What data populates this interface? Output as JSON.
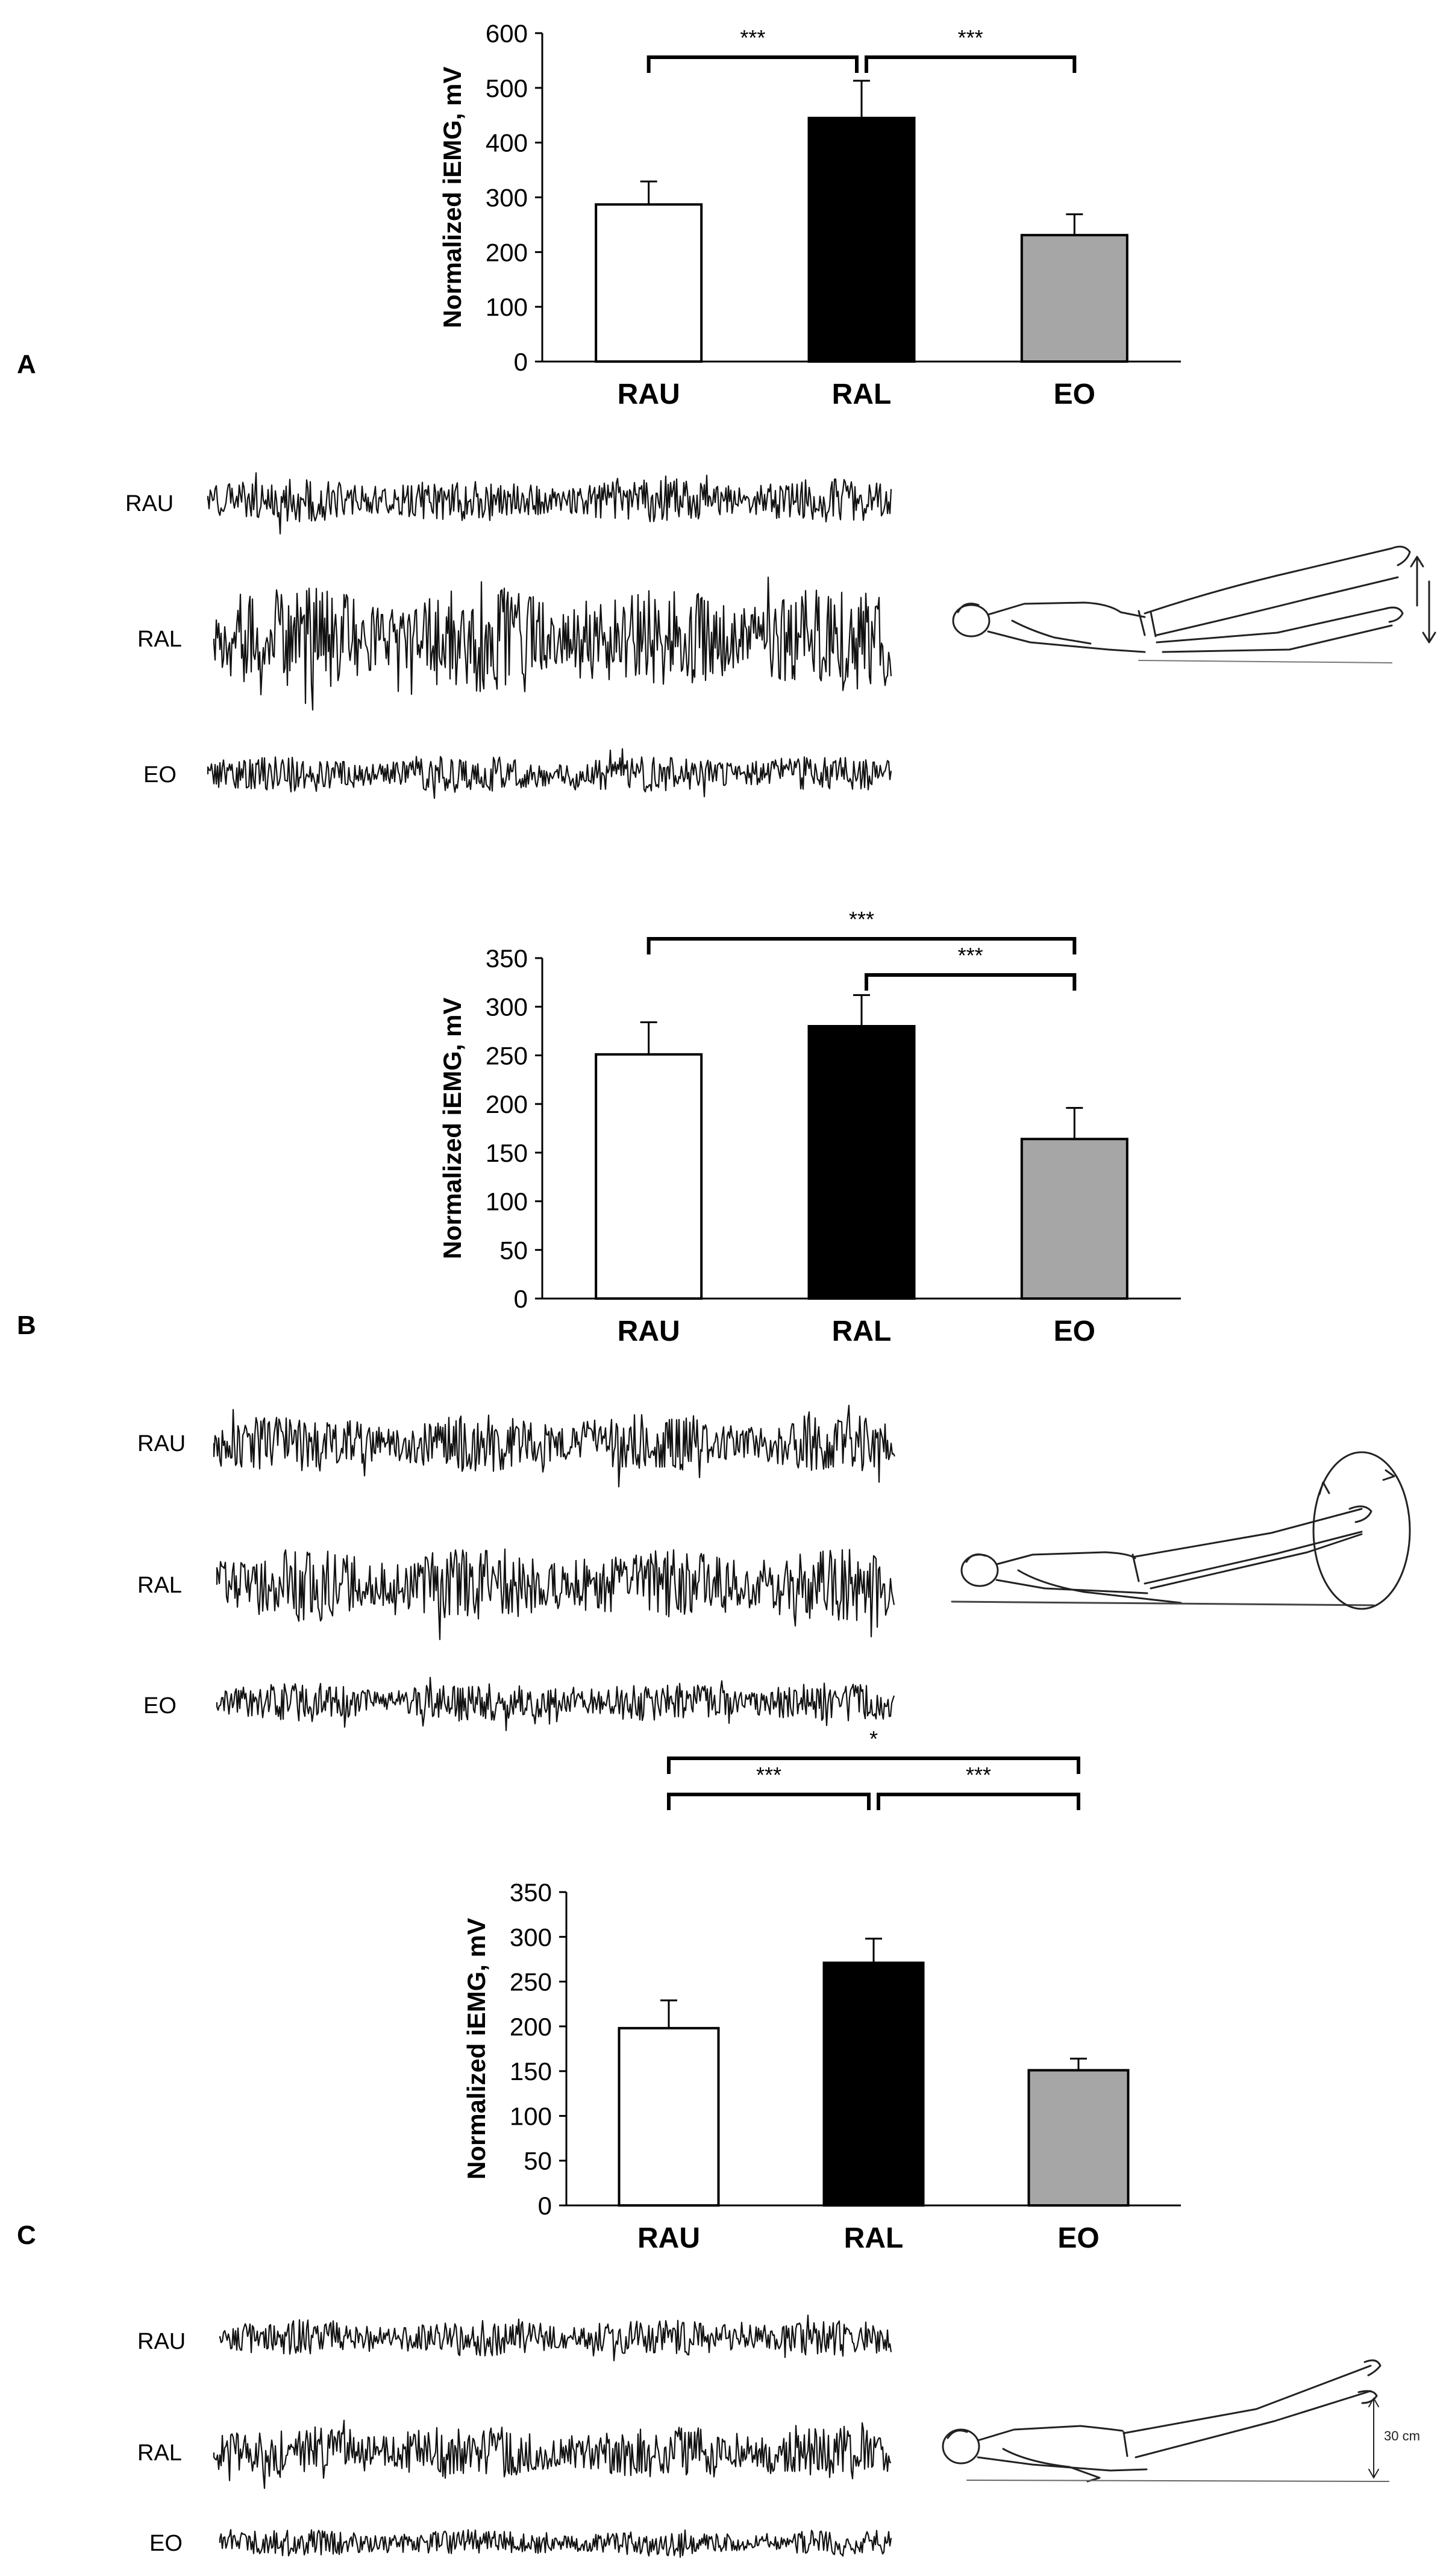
{
  "panels": [
    {
      "letter": "A",
      "trace_labels": [
        "RAU",
        "RAL",
        "EO"
      ],
      "figure_icon": "leg-raise-figure-icon"
    },
    {
      "letter": "B",
      "trace_labels": [
        "RAU",
        "RAL",
        "EO"
      ],
      "figure_icon": "leg-circle-figure-icon"
    },
    {
      "letter": "C",
      "trace_labels": [
        "RAU",
        "RAL",
        "EO"
      ],
      "figure_icon": "leg-hold-30cm-figure-icon"
    }
  ],
  "illustration_text": {
    "height_label": "30 cm"
  },
  "colors": {
    "RAU": "#ffffff",
    "RAL": "#000000",
    "EO": "#a6a6a6"
  },
  "chart_data": [
    {
      "type": "bar",
      "categories": [
        "RAU",
        "RAL",
        "EO"
      ],
      "values": [
        287,
        445,
        231
      ],
      "errors": [
        42,
        68,
        38
      ],
      "ylabel": "Normalized iEMG, mV",
      "xlabel": "",
      "ylim": [
        0,
        600
      ],
      "yticks": [
        0,
        100,
        200,
        300,
        400,
        500,
        600
      ],
      "grid": false,
      "significance": [
        {
          "from": 0,
          "to": 1,
          "label": "***"
        },
        {
          "from": 1,
          "to": 2,
          "label": "***"
        }
      ]
    },
    {
      "type": "bar",
      "categories": [
        "RAU",
        "RAL",
        "EO"
      ],
      "values": [
        251,
        280,
        164
      ],
      "errors": [
        33,
        32,
        32
      ],
      "ylabel": "Normalized iEMG, mV",
      "xlabel": "",
      "ylim": [
        0,
        350
      ],
      "yticks": [
        0,
        50,
        100,
        150,
        200,
        250,
        300,
        350
      ],
      "grid": false,
      "significance": [
        {
          "from": 0,
          "to": 2,
          "label": "***"
        },
        {
          "from": 1,
          "to": 2,
          "label": "***"
        }
      ]
    },
    {
      "type": "bar",
      "categories": [
        "RAU",
        "RAL",
        "EO"
      ],
      "values": [
        198,
        271,
        151
      ],
      "errors": [
        31,
        27,
        13
      ],
      "ylabel": "Normalized iEMG, mV",
      "xlabel": "",
      "ylim": [
        0,
        350
      ],
      "yticks": [
        0,
        50,
        100,
        150,
        200,
        250,
        300,
        350
      ],
      "grid": false,
      "significance": [
        {
          "from": 0,
          "to": 2,
          "label": "*"
        },
        {
          "from": 0,
          "to": 1,
          "label": "***"
        },
        {
          "from": 1,
          "to": 2,
          "label": "***"
        }
      ]
    }
  ]
}
